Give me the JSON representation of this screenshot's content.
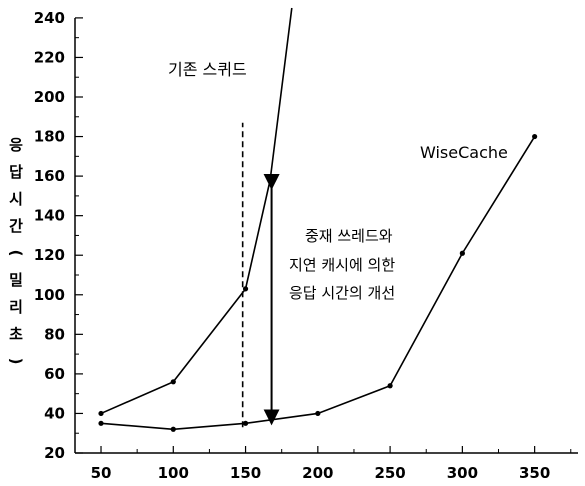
{
  "chart_data": {
    "type": "line",
    "ylabel": "응답시간(밀리초)",
    "xlabel": "",
    "xlim": [
      32,
      380
    ],
    "ylim": [
      20,
      245
    ],
    "xticks": [
      50,
      100,
      150,
      200,
      250,
      300,
      350
    ],
    "yticks": [
      20,
      40,
      60,
      80,
      100,
      120,
      140,
      160,
      180,
      200,
      220,
      240
    ],
    "grid": false,
    "series": [
      {
        "name": "기존 스퀴드",
        "x": [
          50,
          100,
          150,
          167,
          182
        ],
        "y": [
          40,
          56,
          103,
          158,
          245
        ]
      },
      {
        "name": "WiseCache",
        "x": [
          50,
          100,
          150,
          200,
          250,
          300,
          350
        ],
        "y": [
          35,
          32,
          35,
          40,
          54,
          121,
          180
        ]
      }
    ],
    "annotations": [
      {
        "text": "중재 쓰레드와",
        "kind": "label"
      },
      {
        "text": "지연 캐시에 의한",
        "kind": "label"
      },
      {
        "text": "응답 시간의 개선",
        "kind": "label"
      }
    ],
    "improvement_arrow": {
      "x": 168,
      "y_from": 157,
      "y_to": 38
    },
    "reference_line": {
      "x": 148,
      "y_from": 33,
      "y_to": 187,
      "style": "dashed"
    }
  }
}
